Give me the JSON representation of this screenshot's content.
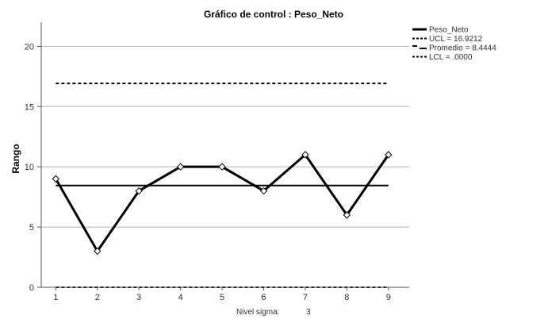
{
  "chart_data": {
    "type": "line",
    "title": "Gráfico de control : Peso_Neto",
    "ylabel": "Rango",
    "xlabel": "",
    "ylim": [
      0,
      22
    ],
    "xlim": [
      0.65,
      9.5
    ],
    "grid": "horizontal",
    "y_ticks": [
      0,
      5,
      10,
      15,
      20
    ],
    "x": [
      1,
      2,
      3,
      4,
      5,
      6,
      7,
      8,
      9
    ],
    "series": [
      {
        "name": "Peso_Neto",
        "values": [
          9,
          3,
          8,
          10,
          10,
          8,
          11,
          6,
          11
        ],
        "marker": "diamond",
        "style": "solid-thick"
      }
    ],
    "control_lines": [
      {
        "label": "UCL = 16.9212",
        "value": 16.9212,
        "style": "dashed"
      },
      {
        "label": "Promedio = 8.4444",
        "value": 8.4444,
        "style": "solid"
      },
      {
        "label": "LCL = .0000",
        "value": 0,
        "style": "dashed"
      }
    ],
    "legend_position": "top-right",
    "footer": {
      "label": "Nivel sigma:",
      "value": "3"
    },
    "colors": {
      "line": "#000000",
      "grid": "#b4b4b4",
      "axis": "#555555"
    }
  }
}
